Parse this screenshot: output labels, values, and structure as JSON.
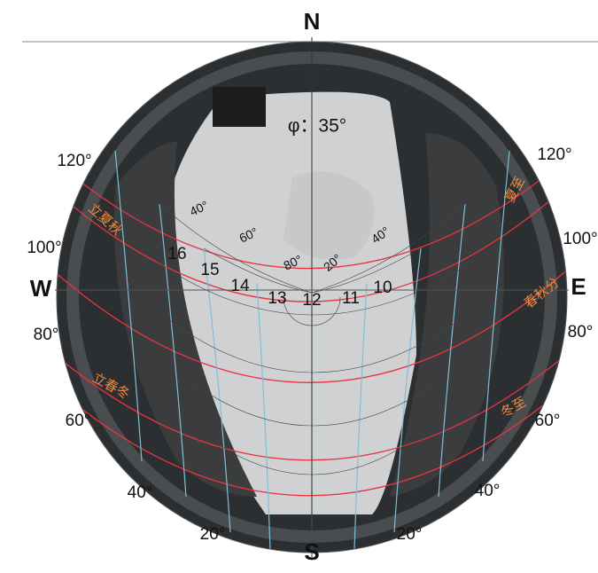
{
  "compass": {
    "north": "N",
    "south": "S",
    "west": "W",
    "east": "E"
  },
  "latitude": "φ：35°",
  "azimuth_labels": {
    "west": [
      "120°",
      "100°",
      "80°",
      "60°",
      "40°",
      "20°"
    ],
    "east": [
      "120°",
      "100°",
      "80°",
      "60°",
      "40°",
      "20°"
    ]
  },
  "hour_labels": [
    "16",
    "15",
    "14",
    "13",
    "12",
    "11",
    "10"
  ],
  "altitude_labels": [
    "40°",
    "60°",
    "80°",
    "20°",
    "40°"
  ],
  "season_labels": [
    "夏至",
    "春秋分",
    "冬至",
    "立夏秋",
    "立春冬"
  ]
}
